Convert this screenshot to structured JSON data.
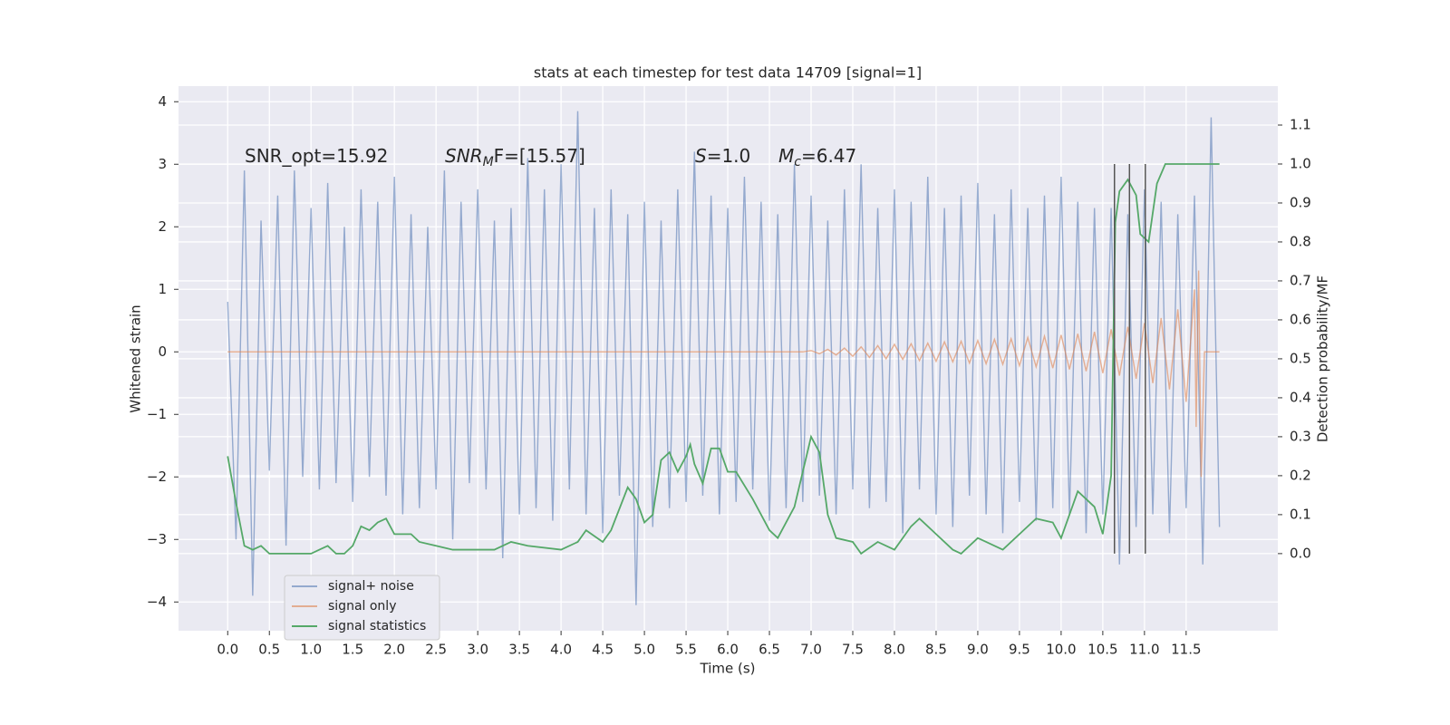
{
  "chart_data": {
    "type": "line",
    "title": "stats at each timestep for test data 14709 [signal=1]",
    "x_label": "Time (s)",
    "y_label": "Whitened strain",
    "y2_label": "Detection probability/MF",
    "xlim": [
      -0.59,
      12.6
    ],
    "ylim": [
      -4.46,
      4.25
    ],
    "y2lim": [
      -0.198,
      1.2
    ],
    "grid": true,
    "legend": "lower left",
    "xticks": [
      {
        "value": 0,
        "label": "0.0"
      },
      0.5,
      {
        "value": 1,
        "label": "1.0"
      },
      1.5,
      {
        "value": 2,
        "label": "2.0"
      },
      2.5,
      {
        "value": 3,
        "label": "3.0"
      },
      3.5,
      {
        "value": 4,
        "label": "4.0"
      },
      4.5,
      {
        "value": 5,
        "label": "5.0"
      },
      5.5,
      {
        "value": 6,
        "label": "6.0"
      },
      6.5,
      {
        "value": 7,
        "label": "7.0"
      },
      7.5,
      {
        "value": 8,
        "label": "8.0"
      },
      8.5,
      {
        "value": 9,
        "label": "9.0"
      },
      9.5,
      {
        "value": 10,
        "label": "10.0"
      },
      10.5,
      {
        "value": 11,
        "label": "11.0"
      },
      11.5
    ],
    "yticks": [
      {
        "value": -4,
        "label": "−4"
      },
      {
        "value": -3,
        "label": "−3"
      },
      {
        "value": -2,
        "label": "−2"
      },
      {
        "value": -1,
        "label": "−1"
      },
      0,
      1,
      2,
      3,
      4
    ],
    "y2ticks": [
      {
        "value": 0,
        "label": "0.0"
      },
      0.1,
      0.2,
      0.3,
      0.4,
      0.5,
      0.6,
      0.7,
      0.8,
      0.9,
      {
        "value": 1,
        "label": "1.0"
      },
      1.1
    ],
    "annotations": [
      [
        {
          "text": "SNR_opt=15.92"
        }
      ],
      [
        {
          "text": "SNR",
          "italic": true
        },
        {
          "text": "M",
          "italic": true,
          "sub": true
        },
        {
          "text": "F=[15.57]"
        }
      ],
      [
        {
          "text": "S",
          "italic": true
        },
        {
          "text": "=1.0"
        }
      ],
      [
        {
          "text": "M",
          "italic": true
        },
        {
          "text": "c",
          "italic": true,
          "sub": true
        },
        {
          "text": "=6.47"
        }
      ]
    ],
    "vlines": [
      10.64,
      10.82,
      11.01
    ],
    "vline_span": [
      0,
      1
    ],
    "vline_color": "#555555",
    "series": [
      {
        "name": "signal+ noise",
        "color": "#4c72b0",
        "alpha": 0.55,
        "x": [
          0,
          0.1,
          0.2,
          0.3,
          0.4,
          0.5,
          0.6,
          0.7,
          0.8,
          0.9,
          1,
          1.1,
          1.2,
          1.3,
          1.4,
          1.5,
          1.6,
          1.7,
          1.8,
          1.9,
          2,
          2.1,
          2.2,
          2.3,
          2.4,
          2.5,
          2.6,
          2.7,
          2.8,
          2.9,
          3,
          3.1,
          3.2,
          3.3,
          3.4,
          3.5,
          3.6,
          3.7,
          3.8,
          3.9,
          4,
          4.1,
          4.2,
          4.3,
          4.4,
          4.5,
          4.6,
          4.7,
          4.8,
          4.9,
          5,
          5.1,
          5.2,
          5.3,
          5.4,
          5.5,
          5.6,
          5.7,
          5.8,
          5.9,
          6,
          6.1,
          6.2,
          6.3,
          6.4,
          6.5,
          6.6,
          6.7,
          6.8,
          6.9,
          7,
          7.1,
          7.2,
          7.3,
          7.4,
          7.5,
          7.6,
          7.7,
          7.8,
          7.9,
          8,
          8.1,
          8.2,
          8.3,
          8.4,
          8.5,
          8.6,
          8.7,
          8.8,
          8.9,
          9,
          9.1,
          9.2,
          9.3,
          9.4,
          9.5,
          9.6,
          9.7,
          9.8,
          9.9,
          10,
          10.1,
          10.2,
          10.3,
          10.4,
          10.5,
          10.6,
          10.7,
          10.8,
          10.9,
          11,
          11.1,
          11.2,
          11.3,
          11.4,
          11.5,
          11.6,
          11.7,
          11.8,
          11.9
        ],
        "values": [
          0.8,
          -3.0,
          2.9,
          -3.9,
          2.1,
          -1.9,
          2.5,
          -3.1,
          2.9,
          -2.0,
          2.3,
          -2.2,
          2.7,
          -2.1,
          2.0,
          -2.4,
          2.6,
          -2.0,
          2.4,
          -2.3,
          2.8,
          -2.6,
          2.2,
          -2.5,
          2.0,
          -2.2,
          2.9,
          -3.0,
          2.4,
          -2.1,
          2.6,
          -2.2,
          2.1,
          -3.3,
          2.3,
          -2.6,
          3.1,
          -2.5,
          2.6,
          -2.7,
          3.0,
          -2.2,
          3.85,
          -2.6,
          2.3,
          -2.9,
          2.6,
          -2.3,
          2.2,
          -4.05,
          2.4,
          -2.8,
          2.1,
          -2.5,
          2.6,
          -2.4,
          3.2,
          -2.3,
          2.5,
          -2.6,
          2.3,
          -2.4,
          2.8,
          -2.2,
          2.4,
          -2.7,
          2.2,
          -2.5,
          3.0,
          -2.4,
          2.5,
          -2.3,
          2.1,
          -2.6,
          2.6,
          -2.2,
          3.0,
          -2.5,
          2.3,
          -2.4,
          2.6,
          -2.9,
          2.4,
          -2.2,
          2.8,
          -2.6,
          2.3,
          -2.8,
          2.5,
          -2.3,
          2.7,
          -2.6,
          2.2,
          -2.9,
          2.6,
          -2.4,
          2.3,
          -2.7,
          2.5,
          -2.5,
          2.8,
          -2.6,
          2.4,
          -2.9,
          2.3,
          -2.6,
          2.3,
          -3.4,
          2.2,
          -2.8,
          2.6,
          -2.6,
          2.4,
          -2.9,
          2.2,
          -2.5,
          2.5,
          -3.4,
          3.75,
          -2.8
        ]
      },
      {
        "name": "signal only",
        "color": "#dd8452",
        "alpha": 0.6,
        "x": [
          0,
          6.9,
          7,
          7.1,
          7.2,
          7.3,
          7.4,
          7.5,
          7.6,
          7.7,
          7.8,
          7.9,
          8,
          8.1,
          8.2,
          8.3,
          8.4,
          8.5,
          8.6,
          8.7,
          8.8,
          8.9,
          9,
          9.1,
          9.2,
          9.3,
          9.4,
          9.5,
          9.6,
          9.7,
          9.8,
          9.9,
          10,
          10.1,
          10.2,
          10.3,
          10.4,
          10.5,
          10.6,
          10.7,
          10.8,
          10.9,
          11,
          11.1,
          11.2,
          11.3,
          11.4,
          11.5,
          11.6,
          11.62,
          11.65,
          11.68,
          11.72,
          11.9
        ],
        "values": [
          0,
          0,
          0.02,
          -0.03,
          0.04,
          -0.05,
          0.06,
          -0.07,
          0.08,
          -0.09,
          0.1,
          -0.11,
          0.12,
          -0.12,
          0.13,
          -0.14,
          0.14,
          -0.15,
          0.16,
          -0.16,
          0.17,
          -0.18,
          0.18,
          -0.19,
          0.2,
          -0.2,
          0.21,
          -0.22,
          0.23,
          -0.24,
          0.25,
          -0.26,
          0.27,
          -0.28,
          0.29,
          -0.31,
          0.32,
          -0.34,
          0.36,
          -0.38,
          0.4,
          -0.43,
          0.46,
          -0.5,
          0.54,
          -0.6,
          0.68,
          -0.8,
          1.0,
          -1.2,
          1.3,
          -2.0,
          0,
          0
        ]
      },
      {
        "name": "signal statistics",
        "color": "#55a868",
        "alpha": 1,
        "axis": "y2",
        "x": [
          0,
          0.1,
          0.2,
          0.3,
          0.4,
          0.5,
          0.6,
          0.8,
          1,
          1.1,
          1.2,
          1.3,
          1.4,
          1.5,
          1.6,
          1.7,
          1.8,
          1.9,
          2,
          2.2,
          2.3,
          2.5,
          2.7,
          3,
          3.2,
          3.4,
          3.6,
          4,
          4.2,
          4.3,
          4.5,
          4.6,
          4.8,
          4.9,
          5,
          5.1,
          5.2,
          5.3,
          5.4,
          5.5,
          5.55,
          5.6,
          5.7,
          5.8,
          5.9,
          6,
          6.1,
          6.3,
          6.5,
          6.6,
          6.8,
          7,
          7.1,
          7.2,
          7.3,
          7.5,
          7.6,
          7.8,
          8,
          8.2,
          8.3,
          8.5,
          8.7,
          8.8,
          9,
          9.1,
          9.3,
          9.5,
          9.7,
          9.9,
          10,
          10.2,
          10.4,
          10.5,
          10.6,
          10.65,
          10.7,
          10.8,
          10.9,
          10.95,
          11.05,
          11.15,
          11.25,
          11.9
        ],
        "values": [
          0.25,
          0.13,
          0.02,
          0.01,
          0.02,
          0.0,
          0.0,
          0.0,
          0.0,
          0.01,
          0.02,
          0.0,
          0.0,
          0.02,
          0.07,
          0.06,
          0.08,
          0.09,
          0.05,
          0.05,
          0.03,
          0.02,
          0.01,
          0.01,
          0.01,
          0.03,
          0.02,
          0.01,
          0.03,
          0.06,
          0.03,
          0.06,
          0.17,
          0.14,
          0.08,
          0.1,
          0.24,
          0.26,
          0.21,
          0.25,
          0.28,
          0.23,
          0.18,
          0.27,
          0.27,
          0.21,
          0.21,
          0.14,
          0.06,
          0.04,
          0.12,
          0.3,
          0.26,
          0.1,
          0.04,
          0.03,
          0.0,
          0.03,
          0.01,
          0.07,
          0.09,
          0.05,
          0.01,
          0.0,
          0.04,
          0.03,
          0.01,
          0.05,
          0.09,
          0.08,
          0.04,
          0.16,
          0.12,
          0.05,
          0.2,
          0.85,
          0.93,
          0.96,
          0.92,
          0.82,
          0.8,
          0.95,
          1.0,
          1.0
        ]
      }
    ]
  }
}
